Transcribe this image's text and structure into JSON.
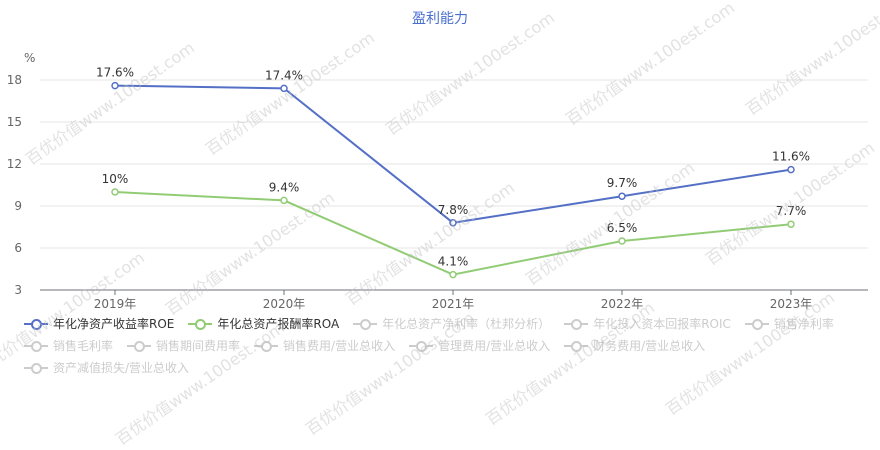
{
  "chart_data": {
    "type": "line",
    "title": "盈利能力",
    "ylabel": "%",
    "categories": [
      "2019年",
      "2020年",
      "2021年",
      "2022年",
      "2023年"
    ],
    "ylim": [
      3,
      18
    ],
    "yticks": [
      3,
      6,
      9,
      12,
      15,
      18
    ],
    "grid": true,
    "legend_position": "bottom",
    "series": [
      {
        "name": "年化净资产收益率ROE",
        "values": [
          17.6,
          17.4,
          7.8,
          9.7,
          11.6
        ],
        "labels": [
          "17.6%",
          "17.4%",
          "7.8%",
          "9.7%",
          "11.6%"
        ],
        "color": "#5470c6",
        "visible": true
      },
      {
        "name": "年化总资产报酬率ROA",
        "values": [
          10,
          9.4,
          4.1,
          6.5,
          7.7
        ],
        "labels": [
          "10%",
          "9.4%",
          "4.1%",
          "6.5%",
          "7.7%"
        ],
        "color": "#91cc75",
        "visible": true
      }
    ]
  },
  "legend_items": [
    {
      "name": "年化净资产收益率ROE",
      "active": true,
      "color": "#5470c6"
    },
    {
      "name": "年化总资产报酬率ROA",
      "active": true,
      "color": "#91cc75"
    },
    {
      "name": "年化总资产净利率（杜邦分析）",
      "active": false,
      "color": "#cccccc"
    },
    {
      "name": "年化投入资本回报率ROIC",
      "active": false,
      "color": "#cccccc"
    },
    {
      "name": "销售净利率",
      "active": false,
      "color": "#cccccc"
    },
    {
      "name": "销售毛利率",
      "active": false,
      "color": "#cccccc"
    },
    {
      "name": "销售期间费用率",
      "active": false,
      "color": "#cccccc"
    },
    {
      "name": "销售费用/营业总收入",
      "active": false,
      "color": "#cccccc"
    },
    {
      "name": "管理费用/营业总收入",
      "active": false,
      "color": "#cccccc"
    },
    {
      "name": "财务费用/营业总收入",
      "active": false,
      "color": "#cccccc"
    },
    {
      "name": "资产减值损失/营业总收入",
      "active": false,
      "color": "#cccccc"
    }
  ],
  "watermark": "百优价值www.100est.com"
}
